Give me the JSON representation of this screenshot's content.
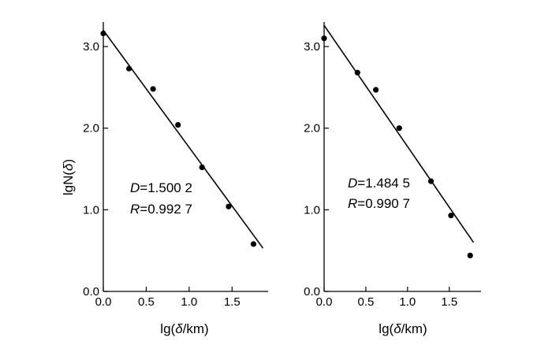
{
  "chart_data": [
    {
      "type": "scatter",
      "ylabel_prefix": "lgN(",
      "ylabel_delta": "δ",
      "ylabel_suffix": ")",
      "xlabel_prefix": "lg(",
      "xlabel_delta": "δ",
      "xlabel_suffix": "/km)",
      "xlim": [
        0,
        1.92
      ],
      "ylim": [
        0,
        3.3
      ],
      "xticks": [
        0.0,
        0.5,
        1.0,
        1.5
      ],
      "xtick_labels": [
        "0.0",
        "0.5",
        "1.0",
        "1.5"
      ],
      "yticks": [
        0.0,
        1.0,
        2.0,
        3.0
      ],
      "ytick_labels": [
        "0.0",
        "1.0",
        "2.0",
        "3.0"
      ],
      "points": [
        {
          "x": 0.0,
          "y": 3.16
        },
        {
          "x": 0.3,
          "y": 2.73
        },
        {
          "x": 0.58,
          "y": 2.48
        },
        {
          "x": 0.87,
          "y": 2.04
        },
        {
          "x": 1.15,
          "y": 1.52
        },
        {
          "x": 1.46,
          "y": 1.04
        },
        {
          "x": 1.75,
          "y": 0.58
        }
      ],
      "fit_line": {
        "x": [
          0.0,
          1.86
        ],
        "y": [
          3.2,
          0.53
        ]
      },
      "annotation": {
        "d_label": "D",
        "d_value": "=1.500 2",
        "r_label": "R",
        "r_value": "=0.992 7"
      }
    },
    {
      "type": "scatter",
      "xlabel_prefix": "lg(",
      "xlabel_delta": "δ",
      "xlabel_suffix": "/km)",
      "xlim": [
        0,
        1.88
      ],
      "ylim": [
        0,
        3.3
      ],
      "xticks": [
        0.0,
        0.5,
        1.0,
        1.5
      ],
      "xtick_labels": [
        "0.0",
        "0.5",
        "1.0",
        "1.5"
      ],
      "yticks": [
        0.0,
        1.0,
        2.0,
        3.0
      ],
      "ytick_labels": [
        "0.0",
        "1.0",
        "2.0",
        "3.0"
      ],
      "points": [
        {
          "x": 0.0,
          "y": 3.1
        },
        {
          "x": 0.4,
          "y": 2.68
        },
        {
          "x": 0.62,
          "y": 2.47
        },
        {
          "x": 0.9,
          "y": 2.0
        },
        {
          "x": 1.28,
          "y": 1.35
        },
        {
          "x": 1.52,
          "y": 0.93
        },
        {
          "x": 1.75,
          "y": 0.44
        }
      ],
      "fit_line": {
        "x": [
          0.0,
          1.79
        ],
        "y": [
          3.26,
          0.6
        ]
      },
      "annotation": {
        "d_label": "D",
        "d_value": "=1.484 5",
        "r_label": "R",
        "r_value": "=0.990 7"
      }
    }
  ]
}
